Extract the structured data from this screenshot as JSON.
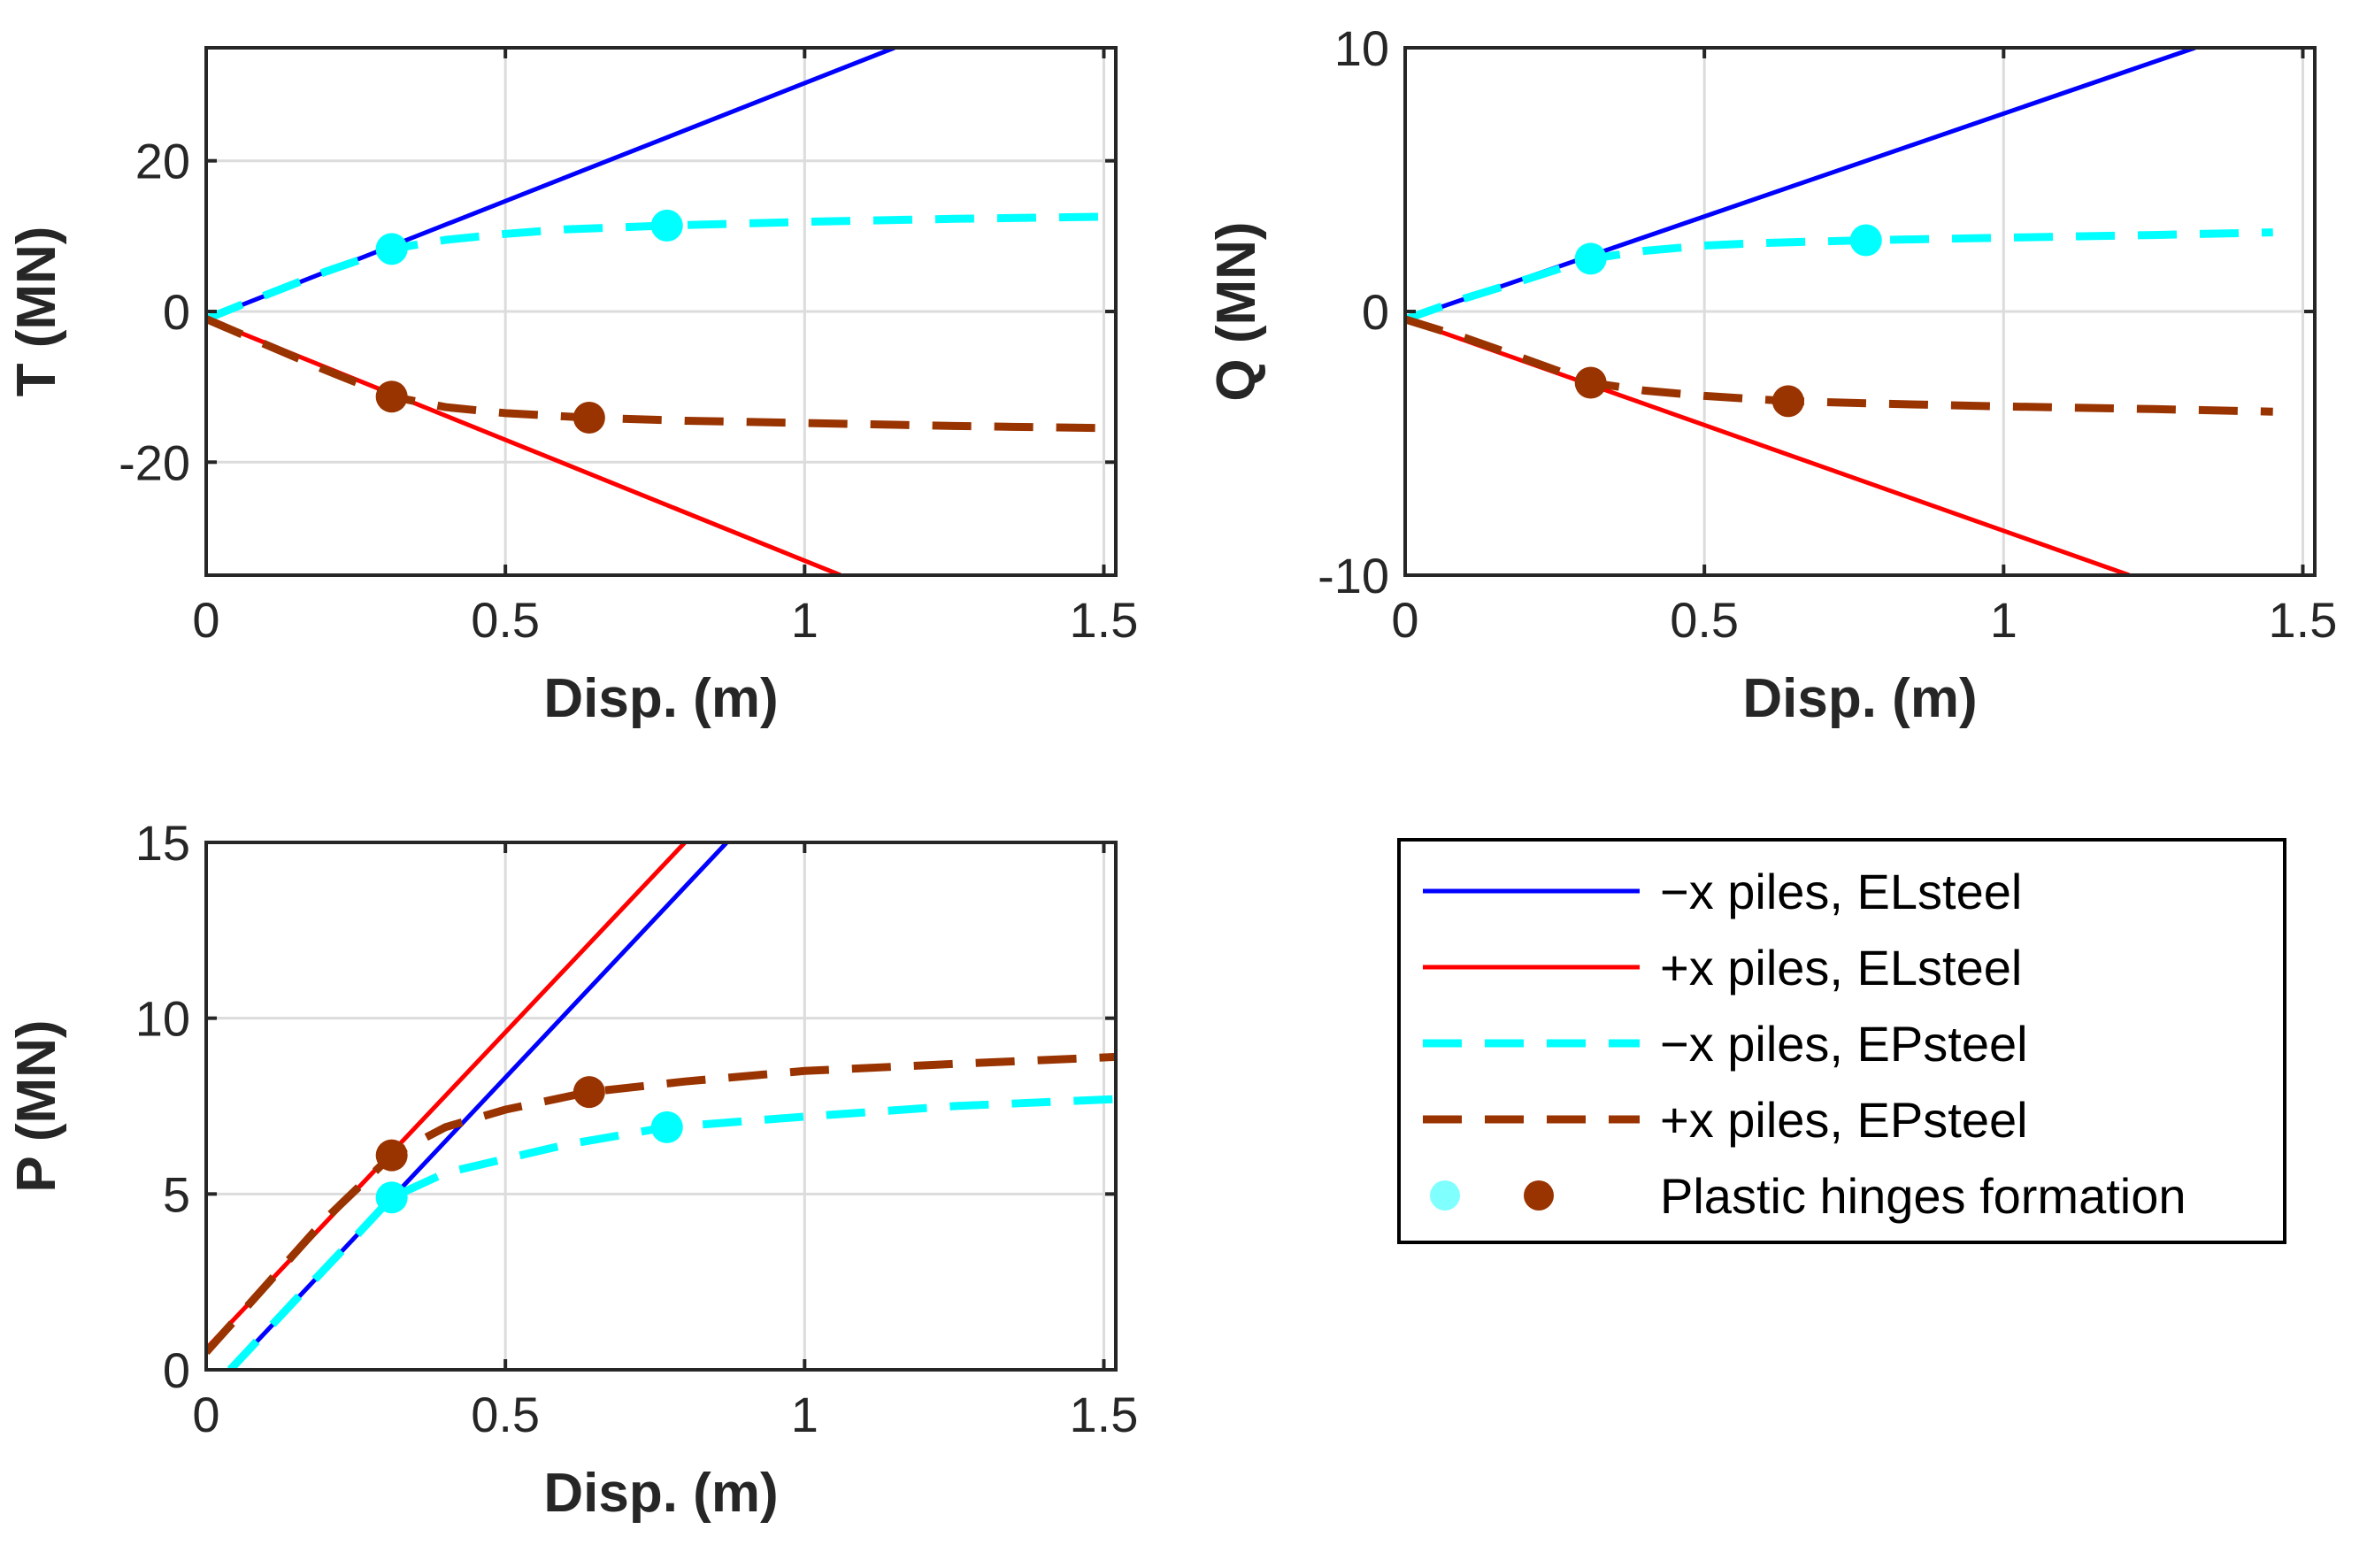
{
  "colors": {
    "minus_el": "#0000FF",
    "plus_el": "#FF0000",
    "minus_ep": "#00FFFF",
    "plus_ep": "#993300",
    "minus_marker": "#80FFFF",
    "axis": "#262626",
    "grid": "#DCDCDC"
  },
  "legend": {
    "entries": [
      {
        "key": "minus_el",
        "label": "−x piles, ELsteel",
        "style": "solid"
      },
      {
        "key": "plus_el",
        "label": "+x piles, ELsteel",
        "style": "solid"
      },
      {
        "key": "minus_ep",
        "label": "−x piles, EPsteel",
        "style": "dashed"
      },
      {
        "key": "plus_ep",
        "label": "+x piles, EPsteel",
        "style": "dashed"
      }
    ],
    "markers_label": "Plastic hinges formation",
    "placement": "bottom-right"
  },
  "chart_data": [
    {
      "id": "T",
      "type": "line",
      "title": "",
      "xlabel": "Disp. (m)",
      "ylabel": "T (MN)",
      "xlim": [
        0,
        1.52
      ],
      "ylim": [
        -35,
        35
      ],
      "xticks": [
        0,
        0.5,
        1,
        1.5
      ],
      "xtick_labels": [
        "0",
        "0.5",
        "1",
        "1.5"
      ],
      "yticks": [
        -20,
        0,
        20
      ],
      "ytick_labels": [
        "-20",
        "0",
        "20"
      ],
      "grid": true,
      "series": [
        {
          "name": "−x piles, ELsteel",
          "key": "minus_el",
          "x": [
            0,
            1.15
          ],
          "y": [
            -1,
            35
          ]
        },
        {
          "name": "+x piles, ELsteel",
          "key": "plus_el",
          "x": [
            0,
            1.06
          ],
          "y": [
            -1,
            -35
          ]
        },
        {
          "name": "−x piles, EPsteel",
          "key": "minus_ep",
          "x": [
            0,
            0.1,
            0.2,
            0.31,
            0.4,
            0.5,
            0.6,
            0.77,
            1.0,
            1.25,
            1.52
          ],
          "y": [
            -1,
            2.2,
            5.3,
            8.3,
            9.5,
            10.3,
            10.9,
            11.4,
            11.9,
            12.3,
            12.6
          ]
        },
        {
          "name": "+x piles, EPsteel",
          "key": "plus_ep",
          "x": [
            0,
            0.1,
            0.2,
            0.31,
            0.4,
            0.5,
            0.64,
            0.8,
            1.0,
            1.25,
            1.52
          ],
          "y": [
            -1,
            -4.4,
            -7.8,
            -11.3,
            -12.7,
            -13.5,
            -14.1,
            -14.5,
            -14.8,
            -15.2,
            -15.5
          ]
        }
      ],
      "hinges": [
        {
          "key": "minus_ep",
          "x": 0.31,
          "y": 8.3
        },
        {
          "key": "minus_ep",
          "x": 0.77,
          "y": 11.4
        },
        {
          "key": "plus_ep",
          "x": 0.31,
          "y": -11.3
        },
        {
          "key": "plus_ep",
          "x": 0.64,
          "y": -14.1
        }
      ]
    },
    {
      "id": "Q",
      "type": "line",
      "title": "",
      "xlabel": "Disp. (m)",
      "ylabel": "Q (MN)",
      "xlim": [
        0,
        1.52
      ],
      "ylim": [
        -10,
        10
      ],
      "xticks": [
        0,
        0.5,
        1,
        1.5
      ],
      "xtick_labels": [
        "0",
        "0.5",
        "1",
        "1.5"
      ],
      "yticks": [
        -10,
        0,
        10
      ],
      "ytick_labels": [
        "-10",
        "0",
        "10"
      ],
      "grid": true,
      "series": [
        {
          "name": "−x piles, ELsteel",
          "key": "minus_el",
          "x": [
            0,
            1.32
          ],
          "y": [
            -0.3,
            10
          ]
        },
        {
          "name": "+x piles, ELsteel",
          "key": "plus_el",
          "x": [
            0,
            1.21
          ],
          "y": [
            -0.3,
            -10
          ]
        },
        {
          "name": "−x piles, EPsteel",
          "key": "minus_ep",
          "x": [
            0,
            0.1,
            0.2,
            0.31,
            0.4,
            0.5,
            0.6,
            0.77,
            1.0,
            1.25,
            1.45
          ],
          "y": [
            -0.3,
            0.5,
            1.2,
            2.0,
            2.3,
            2.5,
            2.6,
            2.7,
            2.8,
            2.9,
            3.0
          ]
        },
        {
          "name": "+x piles, EPsteel",
          "key": "plus_ep",
          "x": [
            0,
            0.1,
            0.2,
            0.31,
            0.4,
            0.5,
            0.64,
            0.8,
            1.0,
            1.25,
            1.45
          ],
          "y": [
            -0.3,
            -1.0,
            -1.8,
            -2.7,
            -3.0,
            -3.2,
            -3.4,
            -3.5,
            -3.6,
            -3.7,
            -3.8
          ]
        }
      ],
      "hinges": [
        {
          "key": "minus_ep",
          "x": 0.31,
          "y": 2.0
        },
        {
          "key": "minus_ep",
          "x": 0.77,
          "y": 2.7
        },
        {
          "key": "plus_ep",
          "x": 0.31,
          "y": -2.7
        },
        {
          "key": "plus_ep",
          "x": 0.64,
          "y": -3.4
        }
      ]
    },
    {
      "id": "P",
      "type": "line",
      "title": "",
      "xlabel": "Disp. (m)",
      "ylabel": "P (MN)",
      "xlim": [
        0,
        1.52
      ],
      "ylim": [
        0,
        15
      ],
      "xticks": [
        0,
        0.5,
        1,
        1.5
      ],
      "xtick_labels": [
        "0",
        "0.5",
        "1",
        "1.5"
      ],
      "yticks": [
        0,
        5,
        10,
        15
      ],
      "ytick_labels": [
        "0",
        "5",
        "10",
        "15"
      ],
      "grid": true,
      "series": [
        {
          "name": "−x piles, ELsteel",
          "key": "minus_el",
          "x": [
            0.04,
            0.87
          ],
          "y": [
            0,
            15
          ]
        },
        {
          "name": "+x piles, ELsteel",
          "key": "plus_el",
          "x": [
            0,
            0.8
          ],
          "y": [
            0.6,
            15
          ]
        },
        {
          "name": "−x piles, EPsteel",
          "key": "minus_ep",
          "x": [
            0.04,
            0.15,
            0.25,
            0.31,
            0.4,
            0.5,
            0.6,
            0.77,
            1.0,
            1.25,
            1.52
          ],
          "y": [
            0,
            2.0,
            3.8,
            4.9,
            5.6,
            6.0,
            6.4,
            6.9,
            7.2,
            7.5,
            7.7
          ]
        },
        {
          "name": "+x piles, EPsteel",
          "key": "plus_ep",
          "x": [
            0,
            0.1,
            0.2,
            0.31,
            0.4,
            0.5,
            0.64,
            0.8,
            1.0,
            1.25,
            1.52
          ],
          "y": [
            0.5,
            2.4,
            4.3,
            6.1,
            6.9,
            7.4,
            7.9,
            8.2,
            8.5,
            8.7,
            8.9
          ]
        }
      ],
      "hinges": [
        {
          "key": "minus_ep",
          "x": 0.31,
          "y": 4.9
        },
        {
          "key": "minus_ep",
          "x": 0.77,
          "y": 6.9
        },
        {
          "key": "plus_ep",
          "x": 0.31,
          "y": 6.1
        },
        {
          "key": "plus_ep",
          "x": 0.64,
          "y": 7.9
        }
      ]
    }
  ]
}
